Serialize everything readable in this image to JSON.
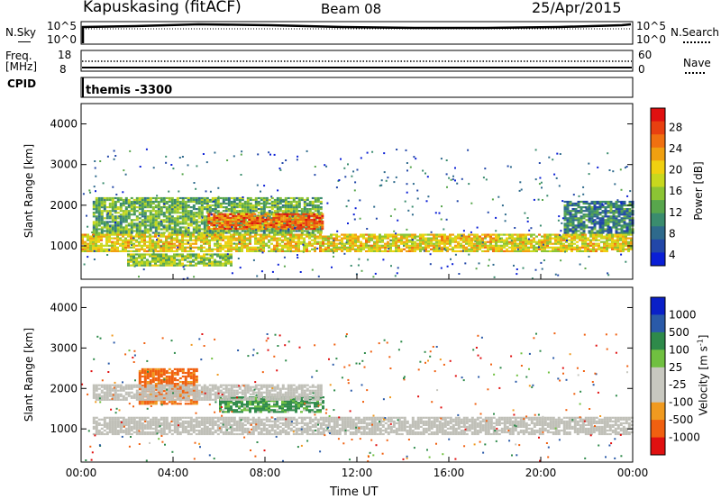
{
  "header": {
    "station": "Kapuskasing (fitACF)",
    "beam": "Beam 08",
    "date": "25/Apr/2015"
  },
  "noise_panel": {
    "left_label": "N.Sky",
    "left_ticks": [
      "10^5",
      "10^0"
    ],
    "right_label": "N.Search",
    "right_ticks": [
      "10^5",
      "10^0"
    ]
  },
  "freq_panel": {
    "left_label_line1": "Freq.",
    "left_label_line2": "[MHz]",
    "left_ticks": [
      "18",
      "8"
    ],
    "right_label": "Nave",
    "right_ticks": [
      "60",
      "0"
    ]
  },
  "cpid_panel": {
    "label": "CPID",
    "text": "themis -3300"
  },
  "x_axis": {
    "label": "Time UT",
    "ticks": [
      "00:00",
      "04:00",
      "08:00",
      "12:00",
      "16:00",
      "20:00",
      "00:00"
    ]
  },
  "power_panel": {
    "ylabel": "Slant Range [km]",
    "yticks": [
      "4000",
      "3000",
      "2000",
      "1000"
    ],
    "colorbar_label": "Power [dB]",
    "colorbar_ticks": [
      "28",
      "24",
      "20",
      "16",
      "12",
      "8",
      "4"
    ]
  },
  "velocity_panel": {
    "ylabel": "Slant Range [km]",
    "yticks": [
      "4000",
      "3000",
      "2000",
      "1000"
    ],
    "colorbar_label": "Velocity [m s",
    "colorbar_label_sup": "-1",
    "colorbar_label_end": "]",
    "colorbar_ticks": [
      "1000",
      "500",
      "100",
      "25",
      "-25",
      "-100",
      "-500",
      "-1000"
    ]
  },
  "colors": {
    "power_scale": [
      "#0a1fd6",
      "#2247a8",
      "#2e6a8c",
      "#3a8c6e",
      "#58a64c",
      "#8cc434",
      "#c8d81e",
      "#f0d010",
      "#f0a010",
      "#f07010",
      "#e84010",
      "#e01010"
    ],
    "velocity_scale": [
      "#e01010",
      "#f06010",
      "#f09a20",
      "#c8c8c0",
      "#c8c8c0",
      "#70c040",
      "#2e8a4a",
      "#2a5aa8",
      "#0a20c8"
    ],
    "ground_scatter": "#c0c0b8"
  },
  "chart_data": [
    {
      "type": "heatmap",
      "title": "Power",
      "xlabel": "Time UT",
      "ylabel": "Slant Range [km]",
      "x_range_hours": [
        0,
        24
      ],
      "y_range_km": [
        180,
        4500
      ],
      "value_label": "Power [dB]",
      "value_range": [
        0,
        30
      ],
      "bands": [
        {
          "t_start": 0.0,
          "t_end": 24.0,
          "range_low": 850,
          "range_high": 1300,
          "power": 18
        },
        {
          "t_start": 0.5,
          "t_end": 10.5,
          "range_low": 1300,
          "range_high": 2200,
          "power": 12
        },
        {
          "t_start": 5.5,
          "t_end": 10.5,
          "range_low": 1400,
          "range_high": 1800,
          "power": 24
        },
        {
          "t_start": 2.0,
          "t_end": 6.5,
          "range_low": 500,
          "range_high": 800,
          "power": 14
        },
        {
          "t_start": 21.0,
          "t_end": 24.0,
          "range_low": 1300,
          "range_high": 2100,
          "power": 8
        }
      ]
    },
    {
      "type": "heatmap",
      "title": "Velocity",
      "xlabel": "Time UT",
      "ylabel": "Slant Range [km]",
      "x_range_hours": [
        0,
        24
      ],
      "y_range_km": [
        180,
        4500
      ],
      "value_label": "Velocity [m s-1]",
      "value_range": [
        -1000,
        1000
      ],
      "bands": [
        {
          "t_start": 0.5,
          "t_end": 24.0,
          "range_low": 850,
          "range_high": 1300,
          "velocity": 0
        },
        {
          "t_start": 2.5,
          "t_end": 5.0,
          "range_low": 1600,
          "range_high": 2500,
          "velocity": -200
        },
        {
          "t_start": 6.0,
          "t_end": 10.5,
          "range_low": 1400,
          "range_high": 1800,
          "velocity": 150
        },
        {
          "t_start": 0.5,
          "t_end": 10.5,
          "range_low": 1700,
          "range_high": 2100,
          "velocity": 0
        }
      ]
    }
  ]
}
